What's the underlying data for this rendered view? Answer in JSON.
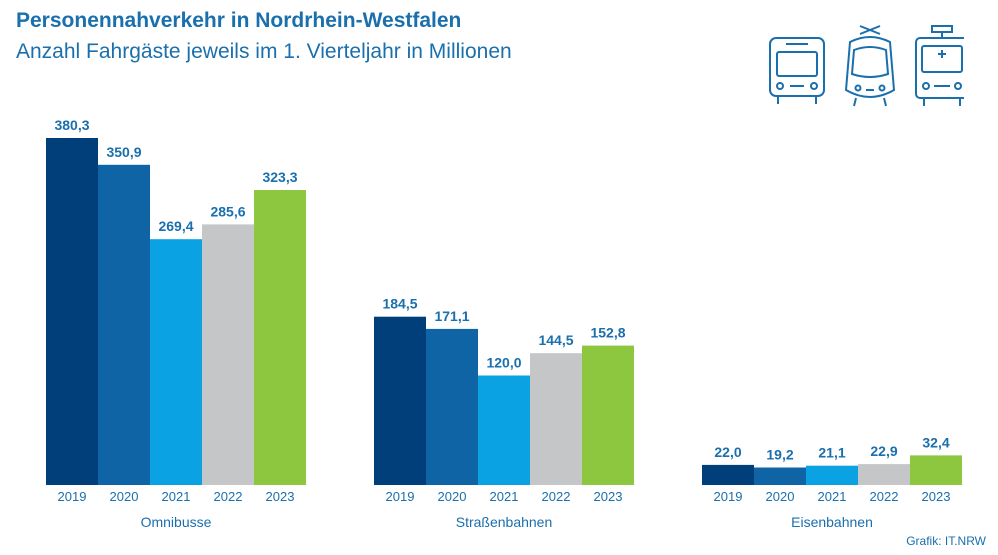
{
  "header": {
    "title": "Personennahverkehr in Nordrhein-Westfalen",
    "subtitle": "Anzahl Fahrgäste jeweils im 1. Vierteljahr in Millionen"
  },
  "source": "Grafik: IT.NRW",
  "icons": [
    "bus-icon",
    "tram-icon",
    "train-icon"
  ],
  "chart_data": {
    "type": "bar",
    "title": "Personennahverkehr in Nordrhein-Westfalen",
    "subtitle": "Anzahl Fahrgäste jeweils im 1. Vierteljahr in Millionen",
    "years": [
      "2019",
      "2020",
      "2021",
      "2022",
      "2023"
    ],
    "colors": [
      "#003f7a",
      "#0e64a4",
      "#0aa2e3",
      "#c5c6c8",
      "#8dc63f"
    ],
    "label_color": "#1a6fad",
    "groups": [
      {
        "name": "Omnibusse",
        "values": [
          380.3,
          350.9,
          269.4,
          285.6,
          323.3
        ],
        "labels": [
          "380,3",
          "350,9",
          "269,4",
          "285,6",
          "323,3"
        ]
      },
      {
        "name": "Straßenbahnen",
        "values": [
          184.5,
          171.1,
          120.0,
          144.5,
          152.8
        ],
        "labels": [
          "184,5",
          "171,1",
          "120,0",
          "144,5",
          "152,8"
        ]
      },
      {
        "name": "Eisenbahnen",
        "values": [
          22.0,
          19.2,
          21.1,
          22.9,
          32.4
        ],
        "labels": [
          "22,0",
          "19,2",
          "21,1",
          "22,9",
          "32,4"
        ]
      }
    ],
    "ylim": [
      0,
      380.3
    ],
    "grid": false,
    "legend": "none"
  }
}
